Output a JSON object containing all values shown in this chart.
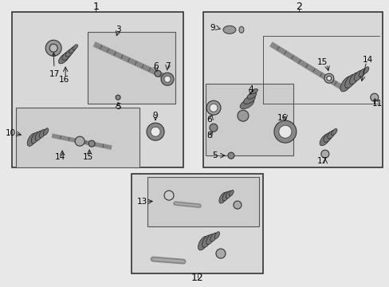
{
  "bg_color": "#e8e8e8",
  "box_face": "#d8d8d8",
  "inner_box_face": "#d0d0d0",
  "fig_width": 4.89,
  "fig_height": 3.6,
  "dpi": 100
}
